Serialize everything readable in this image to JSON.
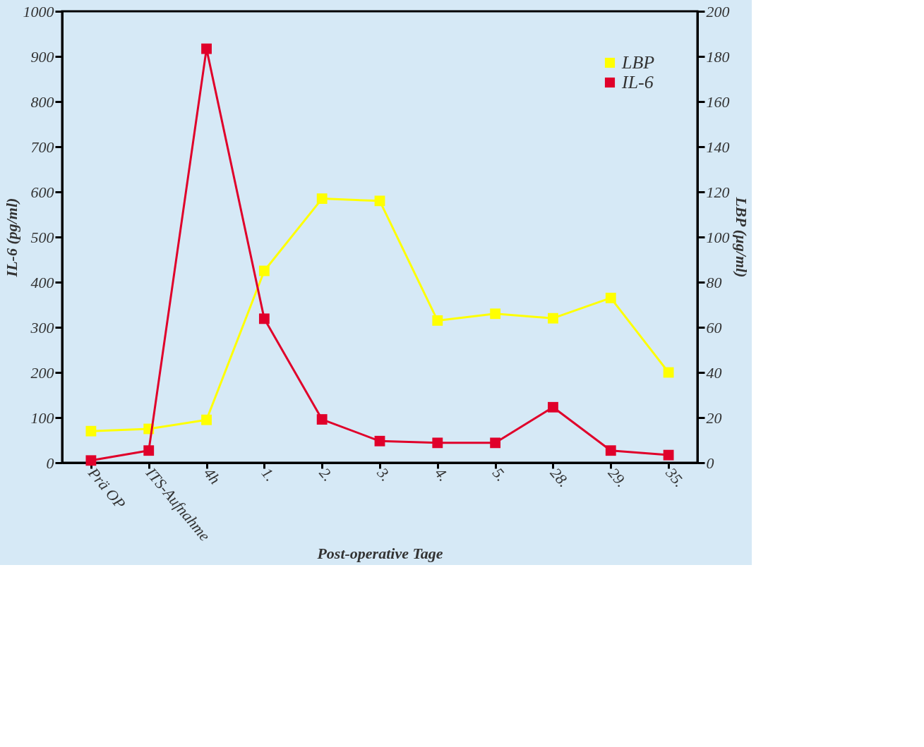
{
  "chart_data": {
    "type": "line",
    "xlabel": "Post-operative Tage",
    "ylabel": "IL-6 (pg/ml)",
    "y2label": "LBP (µg/ml)",
    "categories": [
      "Prä OP",
      "ITS-Aufnahme",
      "4h",
      "1.",
      "2.",
      "3.",
      "4.",
      "5.",
      "28.",
      "29.",
      "35."
    ],
    "series": [
      {
        "name": "LBP",
        "color": "#ffff00",
        "axis": "y2",
        "values": [
          14,
          15,
          19,
          85,
          117,
          116,
          63,
          66,
          64,
          73,
          40
        ]
      },
      {
        "name": "IL-6",
        "color": "#e0002a",
        "values": [
          5,
          27,
          917,
          319,
          96,
          48,
          44,
          44,
          123,
          27,
          17
        ]
      }
    ],
    "ylim": [
      0,
      1000
    ],
    "yticks": [
      0,
      100,
      200,
      300,
      400,
      500,
      600,
      700,
      800,
      900,
      1000
    ],
    "y2lim": [
      0,
      200
    ],
    "y2ticks": [
      0,
      20,
      40,
      60,
      80,
      100,
      120,
      140,
      160,
      180,
      200
    ],
    "legend": "top right",
    "marker": "square",
    "line_style": "solid",
    "grid": false
  }
}
